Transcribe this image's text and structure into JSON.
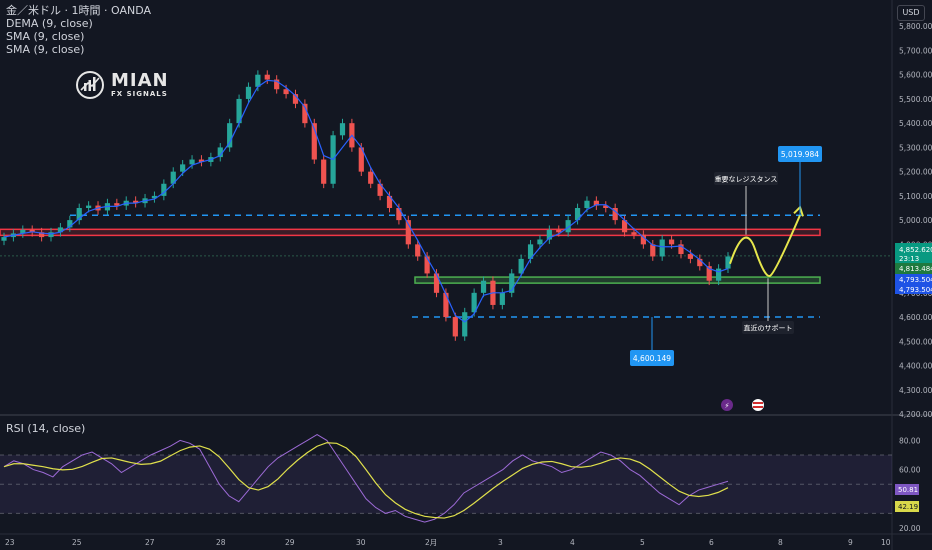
{
  "legend": {
    "symbol": "金／米ドル · 1時間 · OANDA",
    "dema": "DEMA (9, close)",
    "sma1": "SMA (9, close)",
    "sma2": "SMA (9, close)"
  },
  "currency": "USD",
  "logo": {
    "name": "MIAN",
    "sub": "FX SIGNALS"
  },
  "rsi_title": "RSI (14, close)",
  "colors": {
    "background": "#131722",
    "up": "#26a69a",
    "down": "#ef5350",
    "sma_blue": "#2962ff",
    "resistance": "#f23645",
    "support": "#4caf50",
    "dashed": "#2196f3",
    "yellow_path": "#e6e64c",
    "rsi_line": "#9c6ad6",
    "rsi_ma": "#e0e04c"
  },
  "chart_data": [
    {
      "type": "candlestick",
      "title": "金／米ドル · 1時間 · OANDA",
      "ylim": [
        4200,
        5900
      ],
      "y_ticks": [
        "5,800.000",
        "5,700.000",
        "5,600.000",
        "5,500.000",
        "5,400.000",
        "5,300.000",
        "5,200.000",
        "5,100.000",
        "5,000.000",
        "4,900.000",
        "4,800.000",
        "4,700.000",
        "4,600.000",
        "4,500.000",
        "4,400.000",
        "4,300.000",
        "4,200.000"
      ],
      "x_ticks": [
        "23",
        "25",
        "27",
        "28",
        "29",
        "30",
        "2月",
        "3",
        "4",
        "5",
        "6",
        "8",
        "9",
        "10"
      ],
      "close_series": [
        4930,
        4945,
        4960,
        4950,
        4930,
        4950,
        4970,
        5000,
        5050,
        5060,
        5040,
        5070,
        5060,
        5080,
        5070,
        5090,
        5100,
        5150,
        5200,
        5230,
        5250,
        5240,
        5260,
        5300,
        5400,
        5500,
        5550,
        5600,
        5580,
        5540,
        5520,
        5480,
        5400,
        5250,
        5150,
        5350,
        5400,
        5300,
        5200,
        5150,
        5100,
        5050,
        5000,
        4900,
        4850,
        4780,
        4700,
        4600,
        4520,
        4620,
        4700,
        4750,
        4650,
        4700,
        4780,
        4840,
        4900,
        4920,
        4960,
        4950,
        5000,
        5050,
        5080,
        5060,
        5050,
        5000,
        4950,
        4940,
        4900,
        4850,
        4920,
        4900,
        4860,
        4840,
        4810,
        4750,
        4800,
        4850
      ],
      "horizontal_levels": [
        {
          "value": 5019.984,
          "label": "5,019.984",
          "style": "dashed"
        },
        {
          "value": 4950,
          "style": "resistance-zone"
        },
        {
          "value": 4750,
          "style": "support-zone"
        },
        {
          "value": 4600.149,
          "label": "4,600.149",
          "style": "dashed"
        }
      ],
      "price_labels": [
        {
          "label": "4,852.620",
          "sub": "23:13",
          "type": "current"
        },
        {
          "label": "4,813.484",
          "type": "sma"
        },
        {
          "label": "4,793.504",
          "type": "level"
        },
        {
          "label": "4,793.504",
          "type": "level"
        }
      ],
      "annotations": [
        {
          "text": "重要なレジスタンス"
        },
        {
          "text": "直近のサポート"
        },
        {
          "text": "5,019.984"
        },
        {
          "text": "4,600.149"
        }
      ]
    },
    {
      "type": "line",
      "title": "RSI (14, close)",
      "ylim": [
        20,
        90
      ],
      "y_ticks": [
        "80.00",
        "60.00",
        "20.00"
      ],
      "levels": [
        70,
        50,
        30
      ],
      "rsi_values": [
        62,
        66,
        64,
        60,
        58,
        55,
        62,
        66,
        70,
        72,
        68,
        64,
        58,
        62,
        66,
        70,
        73,
        76,
        80,
        78,
        74,
        62,
        50,
        42,
        38,
        46,
        54,
        62,
        68,
        72,
        76,
        80,
        84,
        80,
        70,
        60,
        50,
        40,
        34,
        30,
        32,
        28,
        26,
        24,
        26,
        30,
        36,
        44,
        48,
        52,
        56,
        60,
        66,
        70,
        66,
        64,
        62,
        58,
        60,
        64,
        68,
        72,
        70,
        66,
        60,
        56,
        50,
        44,
        40,
        36,
        42,
        46,
        48,
        50,
        52
      ],
      "current": [
        {
          "label": "50.81"
        },
        {
          "label": "42.19"
        }
      ]
    }
  ]
}
